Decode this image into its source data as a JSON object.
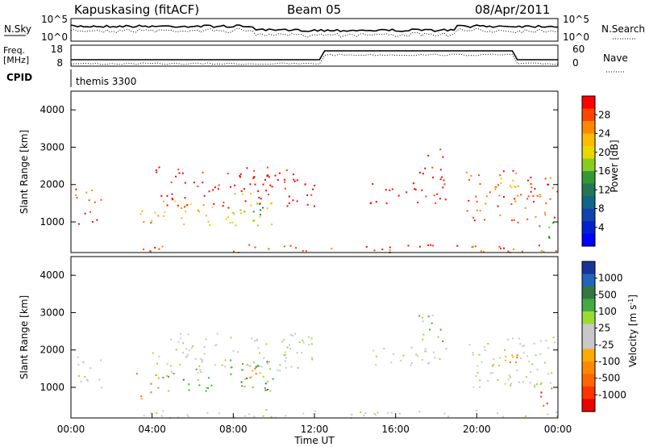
{
  "header": {
    "station": "Kapuskasing (fitACF)",
    "beam": "Beam 05",
    "date": "08/Apr/2011"
  },
  "noise_panel": {
    "left_label": "N.Sky",
    "right_label": "N.Search",
    "left_ticks": [
      "10^5",
      "10^0"
    ],
    "right_ticks": [
      "10^5",
      "10^0"
    ]
  },
  "freq_panel": {
    "left_label_1": "Freq.",
    "left_label_2": "[MHz]",
    "right_label": "Nave",
    "left_ticks": [
      "18",
      "8"
    ],
    "right_ticks": [
      "60",
      "0"
    ]
  },
  "cpid_panel": {
    "label": "CPID",
    "value": "themis 3300"
  },
  "chart_data": [
    {
      "type": "heatmap",
      "name": "power",
      "ylabel": "Slant Range [km]",
      "yticks": [
        1000,
        2000,
        3000,
        4000
      ],
      "ylim": [
        180,
        4500
      ],
      "xlim_hours": [
        0,
        24
      ],
      "colorbar": {
        "label": "Power [dB]",
        "ticks": [
          "28",
          "24",
          "20",
          "16",
          "12",
          "8",
          "4"
        ],
        "colors": [
          "#ff0000",
          "#ff4400",
          "#ff8800",
          "#ffbb00",
          "#e8d800",
          "#88cc22",
          "#339933",
          "#227755",
          "#116688",
          "#1144aa",
          "#0022cc",
          "#0000ff"
        ]
      },
      "regions": [
        {
          "t0": 0.2,
          "t1": 1.5,
          "r0": 900,
          "r1": 1900,
          "level": 1
        },
        {
          "t0": 3.2,
          "t1": 4.3,
          "r0": 700,
          "r1": 1400,
          "level": 2
        },
        {
          "t0": 4.0,
          "t1": 12.0,
          "r0": 1400,
          "r1": 2500,
          "level": 0
        },
        {
          "t0": 4.5,
          "t1": 7.0,
          "r0": 900,
          "r1": 1600,
          "level": 3
        },
        {
          "t0": 7.6,
          "t1": 10.0,
          "r0": 900,
          "r1": 1800,
          "level": 4
        },
        {
          "t0": 8.3,
          "t1": 9.6,
          "r0": 1000,
          "r1": 1600,
          "level": 6
        },
        {
          "t0": 14.7,
          "t1": 18.5,
          "r0": 1500,
          "r1": 2100,
          "level": 0
        },
        {
          "t0": 17.1,
          "t1": 18.4,
          "r0": 2100,
          "r1": 3000,
          "level": 0
        },
        {
          "t0": 19.4,
          "t1": 24.0,
          "r0": 1000,
          "r1": 2400,
          "level": 1
        },
        {
          "t0": 20.5,
          "t1": 22.0,
          "r0": 1600,
          "r1": 2200,
          "level": 3
        },
        {
          "t0": 23.0,
          "t1": 23.9,
          "r0": 400,
          "r1": 1000,
          "level": 6
        },
        {
          "t0": 3.5,
          "t1": 24.0,
          "r0": 200,
          "r1": 420,
          "level": 1
        }
      ]
    },
    {
      "type": "heatmap",
      "name": "velocity",
      "ylabel": "Slant Range [km]",
      "yticks": [
        1000,
        2000,
        3000,
        4000
      ],
      "ylim": [
        180,
        4500
      ],
      "xlim_hours": [
        0,
        24
      ],
      "xticks": [
        "00:00",
        "04:00",
        "08:00",
        "12:00",
        "16:00",
        "20:00",
        "00:00"
      ],
      "xlabel": "Time UT",
      "colorbar": {
        "label": "Velocity [m s^-1]",
        "ticks": [
          "1000",
          "500",
          "100",
          "25",
          "-25",
          "-100",
          "-500",
          "-1000"
        ],
        "colors": [
          "#1a3399",
          "#2266bb",
          "#337744",
          "#44aa44",
          "#99dd33",
          "#c8c8c8",
          "#c8c8c8",
          "#ffaa00",
          "#ff8800",
          "#ff6600",
          "#ff3300",
          "#ee0000"
        ]
      },
      "regions": [
        {
          "t0": 0.2,
          "t1": 1.5,
          "r0": 900,
          "r1": 1900,
          "level": 5
        },
        {
          "t0": 3.2,
          "t1": 4.3,
          "r0": 700,
          "r1": 1400,
          "level": 8
        },
        {
          "t0": 4.0,
          "t1": 12.0,
          "r0": 1400,
          "r1": 2500,
          "level": 5
        },
        {
          "t0": 4.5,
          "t1": 7.0,
          "r0": 900,
          "r1": 1600,
          "level": 3
        },
        {
          "t0": 7.6,
          "t1": 10.0,
          "r0": 900,
          "r1": 1800,
          "level": 3
        },
        {
          "t0": 8.3,
          "t1": 9.6,
          "r0": 1000,
          "r1": 1600,
          "level": 8
        },
        {
          "t0": 14.7,
          "t1": 18.5,
          "r0": 1500,
          "r1": 2100,
          "level": 5
        },
        {
          "t0": 17.1,
          "t1": 18.4,
          "r0": 2100,
          "r1": 3000,
          "level": 4
        },
        {
          "t0": 19.4,
          "t1": 24.0,
          "r0": 1000,
          "r1": 2400,
          "level": 5
        },
        {
          "t0": 20.5,
          "t1": 22.0,
          "r0": 1600,
          "r1": 2200,
          "level": 8
        },
        {
          "t0": 23.0,
          "t1": 23.9,
          "r0": 400,
          "r1": 1000,
          "level": 10
        },
        {
          "t0": 3.5,
          "t1": 24.0,
          "r0": 200,
          "r1": 420,
          "level": 5
        }
      ]
    }
  ]
}
